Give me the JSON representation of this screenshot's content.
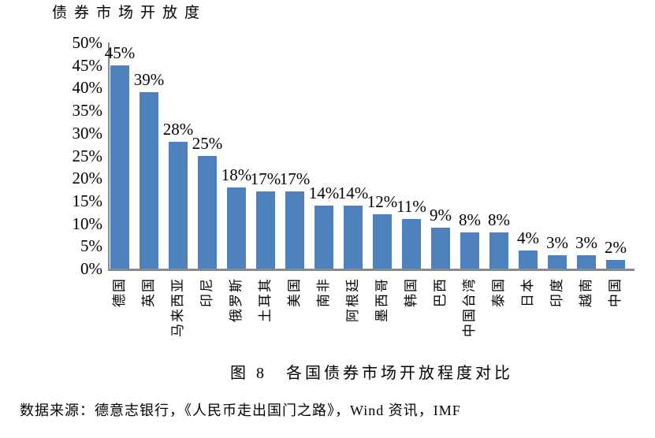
{
  "chart_data": {
    "type": "bar",
    "title": "债券市场开放度",
    "categories": [
      "德国",
      "英国",
      "马来西亚",
      "印尼",
      "俄罗斯",
      "土耳其",
      "美国",
      "南非",
      "阿根廷",
      "墨西哥",
      "韩国",
      "巴西",
      "中国台湾",
      "泰国",
      "日本",
      "印度",
      "越南",
      "中国"
    ],
    "values": [
      45,
      39,
      28,
      25,
      18,
      17,
      17,
      14,
      14,
      12,
      11,
      9,
      8,
      8,
      4,
      3,
      3,
      2
    ],
    "data_labels": [
      "45%",
      "39%",
      "28%",
      "25%",
      "18%",
      "17%",
      "17%",
      "14%",
      "14%",
      "12%",
      "11%",
      "9%",
      "8%",
      "8%",
      "4%",
      "3%",
      "3%",
      "2%"
    ],
    "xlabel": "",
    "ylabel": "",
    "ylim": [
      0,
      50
    ],
    "ytick_step": 5,
    "yticks": [
      "50%",
      "45%",
      "40%",
      "35%",
      "30%",
      "25%",
      "20%",
      "15%",
      "10%",
      "5%",
      "0%"
    ],
    "grid": false,
    "legend": "none",
    "bar_color": "#4f81bd",
    "axis_color": "#8a8a8a",
    "label_color": "#000000"
  },
  "caption": "图 8　各国债券市场开放程度对比",
  "source": "数据来源：德意志银行，《人民币走出国门之路》，Wind 资讯，IMF"
}
